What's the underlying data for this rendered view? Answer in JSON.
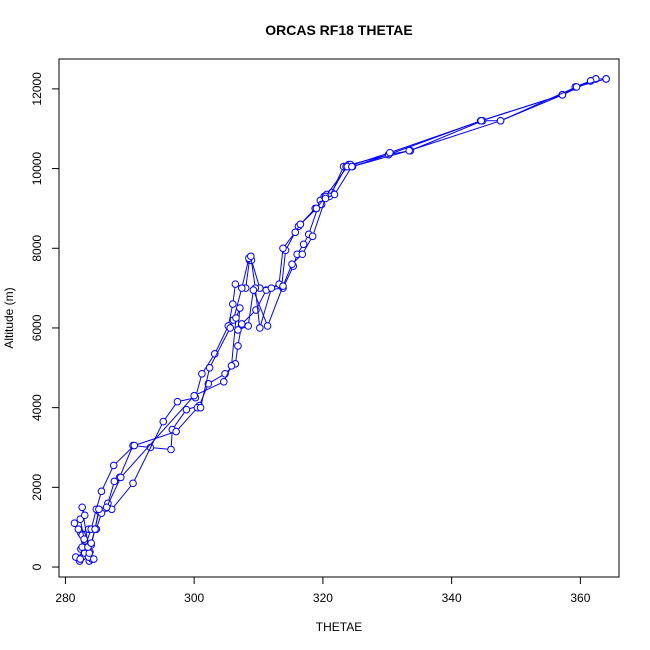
{
  "chart_data": {
    "type": "scatter",
    "title": "ORCAS RF18 THETAE",
    "xlabel": "THETAE",
    "ylabel": "Altitude (m)",
    "xlim": [
      279.0,
      366.0
    ],
    "ylim": [
      -250,
      12750
    ],
    "xticks": [
      280,
      300,
      320,
      340,
      360
    ],
    "yticks": [
      0,
      2000,
      4000,
      6000,
      8000,
      10000,
      12000
    ],
    "grid": false,
    "series": [
      {
        "color": "#0000ff",
        "points": [
          [
            283.7,
            150
          ],
          [
            284.1,
            200
          ],
          [
            283.2,
            300
          ],
          [
            283.8,
            380
          ],
          [
            282.4,
            450
          ],
          [
            283.4,
            500
          ],
          [
            284.0,
            550
          ],
          [
            284.6,
            950
          ],
          [
            285.2,
            1400
          ],
          [
            286.6,
            1600
          ],
          [
            287.6,
            2150
          ],
          [
            288.4,
            2250
          ],
          [
            290.5,
            3050
          ],
          [
            293.2,
            3000
          ],
          [
            296.4,
            2950
          ],
          [
            296.6,
            3450
          ],
          [
            298.8,
            3950
          ],
          [
            300.8,
            4050
          ],
          [
            302.2,
            4600
          ],
          [
            304.8,
            4850
          ],
          [
            306.4,
            5100
          ],
          [
            306.8,
            5550
          ],
          [
            307.4,
            6100
          ],
          [
            309.6,
            6450
          ],
          [
            311.2,
            6950
          ],
          [
            313.8,
            7000
          ],
          [
            315.4,
            7550
          ],
          [
            316.0,
            7850
          ],
          [
            317.0,
            8100
          ],
          [
            317.8,
            8350
          ],
          [
            319.6,
            9200
          ],
          [
            320.2,
            9300
          ],
          [
            320.6,
            9350
          ],
          [
            321.4,
            9400
          ],
          [
            323.2,
            10050
          ],
          [
            324.0,
            10100
          ],
          [
            324.6,
            10050
          ],
          [
            330.2,
            10350
          ],
          [
            333.6,
            10450
          ],
          [
            344.8,
            11200
          ],
          [
            347.6,
            11200
          ],
          [
            357.2,
            11850
          ],
          [
            359.2,
            12050
          ],
          [
            361.6,
            12200
          ],
          [
            362.4,
            12250
          ],
          [
            364.0,
            12250
          ]
        ]
      },
      {
        "color": "#0000ff",
        "points": [
          [
            282.2,
            150
          ],
          [
            282.6,
            250
          ],
          [
            283.0,
            400
          ],
          [
            283.4,
            520
          ],
          [
            282.4,
            850
          ],
          [
            283.6,
            950
          ],
          [
            284.8,
            950
          ],
          [
            285.6,
            1350
          ],
          [
            287.2,
            1450
          ],
          [
            290.5,
            2100
          ],
          [
            295.2,
            3650
          ],
          [
            297.4,
            4150
          ],
          [
            300.2,
            4250
          ],
          [
            301.2,
            4850
          ],
          [
            303.2,
            5350
          ],
          [
            305.3,
            6050
          ],
          [
            306.0,
            6600
          ],
          [
            306.4,
            7100
          ],
          [
            308.0,
            7000
          ],
          [
            308.6,
            7700
          ],
          [
            308.9,
            7700
          ],
          [
            310.2,
            7000
          ],
          [
            313.6,
            7050
          ],
          [
            314.2,
            7950
          ],
          [
            316.2,
            8550
          ],
          [
            318.8,
            9000
          ],
          [
            319.8,
            9100
          ],
          [
            321.0,
            9300
          ],
          [
            323.6,
            10050
          ],
          [
            324.3,
            10100
          ],
          [
            330.2,
            10350
          ],
          [
            344.5,
            11200
          ],
          [
            357.2,
            11850
          ],
          [
            362.4,
            12250
          ]
        ]
      },
      {
        "color": "#0000ff",
        "points": [
          [
            281.4,
            1100
          ],
          [
            282.0,
            950
          ],
          [
            282.6,
            800
          ],
          [
            283.0,
            650
          ],
          [
            282.8,
            500
          ],
          [
            283.0,
            350
          ],
          [
            283.6,
            250
          ],
          [
            284.4,
            200
          ],
          [
            283.0,
            500
          ],
          [
            284.0,
            950
          ],
          [
            284.8,
            1450
          ],
          [
            285.6,
            1900
          ],
          [
            287.5,
            2550
          ],
          [
            290.7,
            3050
          ],
          [
            297.2,
            3400
          ],
          [
            300.5,
            4000
          ],
          [
            301.0,
            4000
          ],
          [
            302.4,
            5000
          ],
          [
            305.6,
            6000
          ],
          [
            306.1,
            6200
          ],
          [
            307.4,
            7000
          ],
          [
            308.5,
            7750
          ],
          [
            308.8,
            7800
          ],
          [
            309.5,
            7000
          ],
          [
            310.2,
            6000
          ],
          [
            312.0,
            7000
          ],
          [
            313.2,
            7100
          ],
          [
            313.8,
            8000
          ],
          [
            315.7,
            8400
          ],
          [
            316.5,
            8600
          ],
          [
            319.0,
            9000
          ],
          [
            320.4,
            9300
          ],
          [
            323.8,
            10050
          ],
          [
            330.4,
            10400
          ],
          [
            344.6,
            11200
          ],
          [
            357.2,
            11850
          ],
          [
            361.6,
            12200
          ]
        ]
      },
      {
        "color": "#0000ff",
        "points": [
          [
            281.6,
            250
          ],
          [
            282.3,
            200
          ],
          [
            282.6,
            500
          ],
          [
            282.9,
            700
          ],
          [
            282.3,
            1200
          ],
          [
            283.0,
            1300
          ],
          [
            282.6,
            1500
          ],
          [
            283.7,
            350
          ],
          [
            283.5,
            500
          ],
          [
            284.0,
            600
          ],
          [
            284.6,
            950
          ],
          [
            285.2,
            1450
          ],
          [
            286.4,
            1500
          ],
          [
            288.6,
            2250
          ],
          [
            300.0,
            4300
          ],
          [
            304.6,
            4650
          ],
          [
            305.8,
            5050
          ],
          [
            306.5,
            6250
          ],
          [
            307.1,
            6500
          ],
          [
            306.8,
            5950
          ],
          [
            308.4,
            6050
          ],
          [
            309.2,
            6950
          ],
          [
            311.4,
            6050
          ],
          [
            313.8,
            7050
          ],
          [
            315.2,
            7600
          ],
          [
            316.8,
            7850
          ],
          [
            318.4,
            8300
          ],
          [
            320.4,
            9250
          ],
          [
            321.8,
            9350
          ],
          [
            324.5,
            10050
          ],
          [
            333.4,
            10450
          ],
          [
            347.6,
            11200
          ],
          [
            359.4,
            12050
          ],
          [
            364.0,
            12250
          ]
        ]
      }
    ]
  }
}
